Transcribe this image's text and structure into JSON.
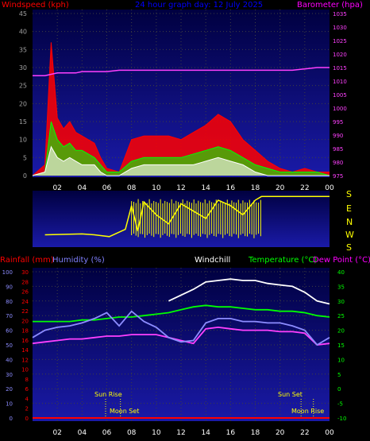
{
  "colors": {
    "background": "#000000",
    "plot_top": "#000040",
    "plot_bottom": "#1a1aa8",
    "red": "#ff0000",
    "green": "#00ff00",
    "magenta": "#ff40ff",
    "yellow": "#ffff00",
    "white": "#ffffff",
    "blue": "#6666ff",
    "purple": "#8c8cff",
    "grid": "#404040",
    "axis_grey": "#a0a0a0"
  },
  "header": {
    "windspeed_label": "Windspeed (kph)",
    "title": "24 hour graph day: 12 July 2025",
    "barometer_label": "Barometer (hpa)"
  },
  "lower_header": {
    "rainfall_label": "Rainfall (mm)",
    "humidity_label": "Humidity (%)",
    "windchill_label": "Windchill",
    "temperature_label": "Temperature (°C)",
    "dewpoint_label": "Dew Point (°C)"
  },
  "compass_letters": [
    "S",
    "E",
    "N",
    "W",
    "S"
  ],
  "x_ticks": [
    "02",
    "04",
    "06",
    "08",
    "10",
    "12",
    "14",
    "16",
    "18",
    "20",
    "22",
    "00"
  ],
  "events": {
    "sun_rise": "Sun Rise",
    "moon_set": "Moon Set",
    "sun_set": "Sun Set",
    "moon_rise": "Moon Rise"
  },
  "chart_data": [
    {
      "type": "line",
      "panel": "wind",
      "xlabel": "",
      "x_range_hours": [
        0,
        24
      ],
      "ylabel_left": "Windspeed (kph)",
      "ylim_left": [
        0,
        45
      ],
      "yticks_left": [
        0,
        5,
        10,
        15,
        20,
        25,
        30,
        35,
        40,
        45
      ],
      "ylabel_right": "Barometer (hpa)",
      "ylim_right": [
        975,
        1035
      ],
      "yticks_right": [
        975,
        980,
        985,
        990,
        995,
        1000,
        1005,
        1010,
        1015,
        1020,
        1025,
        1030,
        1035
      ],
      "x": [
        0,
        1,
        1.5,
        2,
        2.5,
        3,
        3.5,
        4,
        4.5,
        5,
        5.5,
        6,
        7,
        8,
        9,
        10,
        11,
        12,
        13,
        14,
        15,
        16,
        17,
        18,
        19,
        20,
        21,
        22,
        23,
        24
      ],
      "series": [
        {
          "name": "Gust",
          "color": "red",
          "values": [
            0,
            3,
            37,
            16,
            13,
            15,
            12,
            11,
            10,
            9,
            5,
            2,
            1,
            10,
            11,
            11,
            11,
            10,
            12,
            14,
            17,
            15,
            10,
            7,
            4,
            2,
            1,
            2,
            1,
            1
          ]
        },
        {
          "name": "Average",
          "color": "green",
          "values": [
            0,
            1,
            15,
            10,
            8,
            9,
            7,
            7,
            6,
            5,
            3,
            1,
            1,
            4,
            5,
            5,
            5,
            5,
            6,
            7,
            8,
            7,
            5,
            3,
            2,
            1,
            1,
            1,
            1,
            0
          ]
        },
        {
          "name": "Speed",
          "color": "white",
          "values": [
            0,
            1,
            8,
            5,
            4,
            5,
            4,
            3,
            3,
            3,
            1,
            0,
            0,
            2,
            3,
            3,
            3,
            3,
            3,
            4,
            5,
            4,
            3,
            1,
            0,
            0,
            0,
            0,
            0,
            0
          ]
        },
        {
          "name": "Barometer",
          "axis": "right",
          "color": "magenta",
          "values": [
            1012,
            1012,
            1012.5,
            1013,
            1013,
            1013,
            1013,
            1013.5,
            1013.5,
            1013.5,
            1013.5,
            1013.5,
            1014,
            1014,
            1014,
            1014,
            1014,
            1014,
            1014,
            1014,
            1014,
            1014,
            1014,
            1014,
            1014,
            1014,
            1014,
            1014.5,
            1015,
            1015
          ]
        }
      ]
    },
    {
      "type": "line",
      "panel": "direction",
      "x_range_hours": [
        0,
        24
      ],
      "compass": [
        "S",
        "E",
        "N",
        "W",
        "S"
      ],
      "x": [
        1,
        4,
        5,
        6.2,
        7.5,
        8,
        8.5,
        9,
        10,
        11,
        12,
        13,
        14,
        15,
        16,
        17,
        18,
        18.5,
        20,
        24
      ],
      "values_deg": [
        140,
        145,
        140,
        130,
        170,
        300,
        160,
        320,
        250,
        200,
        310,
        270,
        230,
        330,
        300,
        250,
        330,
        350,
        350,
        350
      ]
    },
    {
      "type": "line",
      "panel": "temperature",
      "x_range_hours": [
        0,
        24
      ],
      "rainfall_axis": {
        "label": "Rainfall (mm)",
        "ylim": [
          0,
          30
        ],
        "ticks": [
          0,
          2,
          4,
          6,
          8,
          10,
          12,
          14,
          16,
          18,
          20,
          22,
          24,
          26,
          28,
          30
        ]
      },
      "humidity_axis": {
        "label": "Humidity (%)",
        "ylim": [
          0,
          100
        ],
        "ticks": [
          0,
          10,
          20,
          30,
          40,
          50,
          60,
          70,
          80,
          90,
          100
        ]
      },
      "temperature_axis": {
        "label": "Temperature (°C)",
        "ylim": [
          -10,
          40
        ],
        "ticks": [
          -10,
          -5,
          0,
          5,
          10,
          15,
          20,
          25,
          30,
          35,
          40
        ]
      },
      "x": [
        0,
        1,
        2,
        3,
        4,
        5,
        6,
        7,
        8,
        9,
        10,
        11,
        12,
        13,
        14,
        15,
        16,
        17,
        18,
        19,
        20,
        21,
        22,
        23,
        24
      ],
      "series": [
        {
          "name": "Temperature",
          "color": "green",
          "values": [
            23,
            23,
            23,
            23,
            23.5,
            23.5,
            24,
            24.5,
            24.5,
            25,
            25.5,
            26,
            27,
            28,
            28.5,
            28,
            28,
            27.5,
            27,
            27,
            26.5,
            26.5,
            26,
            25,
            24.5
          ]
        },
        {
          "name": "Windchill",
          "color": "white",
          "values": [
            null,
            null,
            null,
            null,
            null,
            null,
            null,
            null,
            null,
            null,
            null,
            30,
            32,
            34,
            36.5,
            37,
            37.5,
            37,
            37,
            36,
            35.5,
            35,
            33,
            30,
            29
          ]
        },
        {
          "name": "Dew Point",
          "color": "magenta",
          "values": [
            15.5,
            16,
            16.5,
            17,
            17,
            17.5,
            18,
            18,
            18.5,
            18.5,
            18.5,
            17.5,
            16.5,
            15.5,
            20.5,
            21,
            20.5,
            20,
            20,
            20,
            19.5,
            19.5,
            19,
            15,
            15.5
          ]
        },
        {
          "name": "Humidity",
          "axis": "humidity",
          "color": "purple",
          "values": [
            55,
            60,
            62,
            63,
            65,
            68,
            72,
            63,
            73,
            66,
            62,
            55,
            52,
            53,
            65,
            68,
            68,
            66,
            66,
            65,
            65,
            63,
            60,
            50,
            55
          ]
        },
        {
          "name": "Rainfall",
          "axis": "rainfall",
          "color": "red",
          "values": [
            0,
            0,
            0,
            0,
            0,
            0,
            0,
            0,
            0,
            0,
            0,
            0,
            0,
            0,
            0,
            0,
            0,
            0,
            0,
            0,
            0,
            0,
            0,
            0,
            0
          ]
        }
      ],
      "events": [
        {
          "label": "Sun Rise",
          "hour": 5.9
        },
        {
          "label": "Moon Set",
          "hour": 7.1
        },
        {
          "label": "Sun Set",
          "hour": 21.7
        },
        {
          "label": "Moon Rise",
          "hour": 22.7
        }
      ]
    }
  ]
}
